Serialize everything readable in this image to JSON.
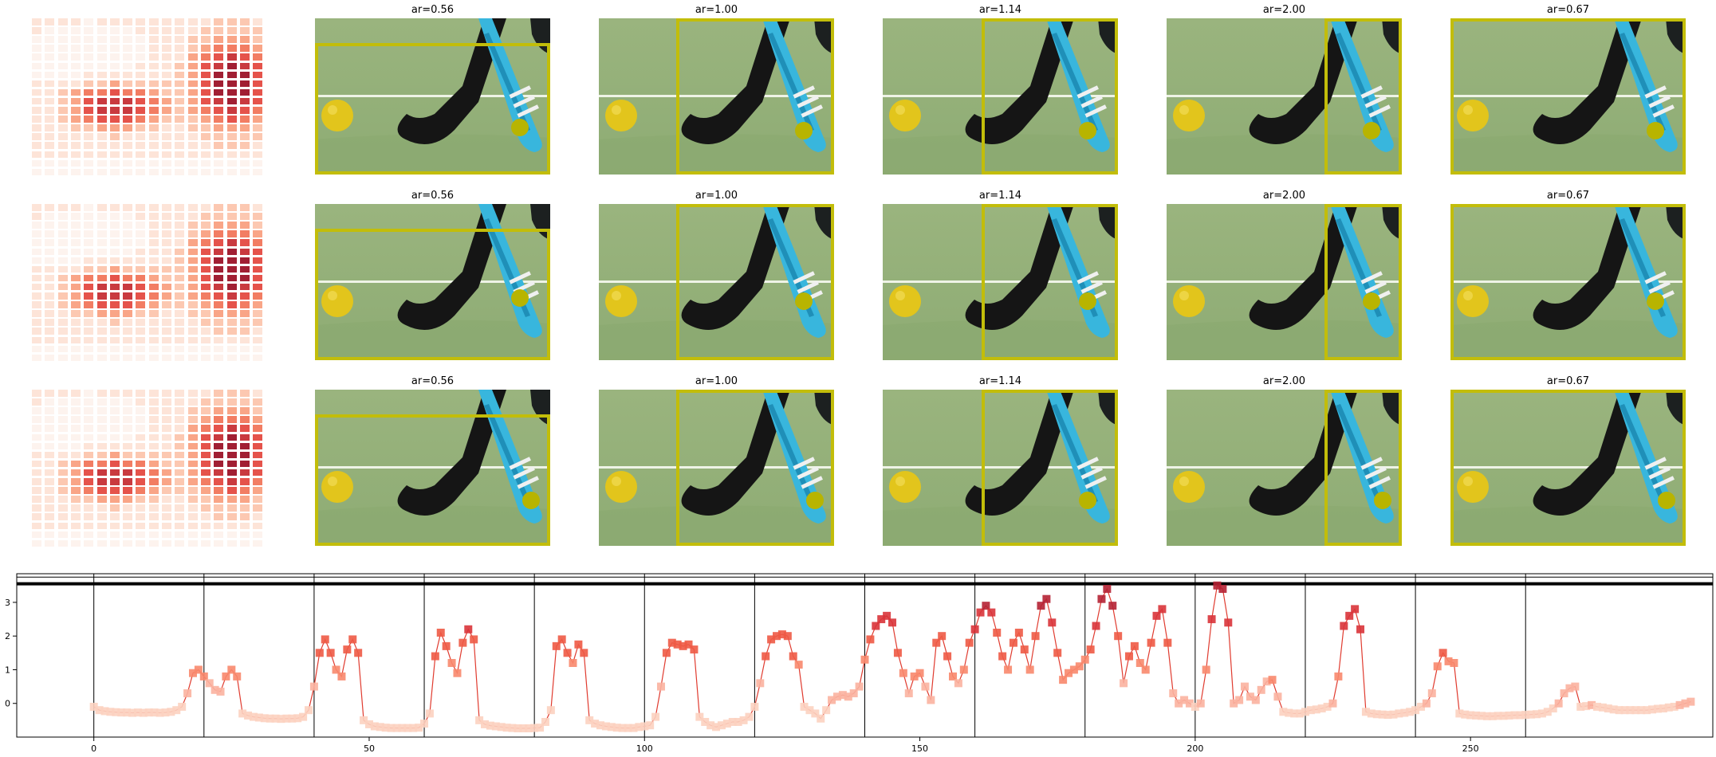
{
  "panels": {
    "rows": 3,
    "titles": [
      "ar=0.56",
      "ar=1.00",
      "ar=1.14",
      "ar=2.00",
      "ar=0.67"
    ],
    "box_color": "#c2bd0a",
    "dot_color": "#b8b400"
  },
  "chart_data": [
    {
      "type": "line",
      "title": "",
      "xlabel": "",
      "ylabel": "",
      "xlim": [
        -14,
        294
      ],
      "ylim": [
        -1.0,
        3.85
      ],
      "xticks": [
        0,
        50,
        100,
        150,
        200,
        250
      ],
      "yticks": [
        0,
        1,
        2,
        3
      ],
      "vlines": [
        0,
        20,
        40,
        60,
        80,
        100,
        120,
        140,
        160,
        180,
        200,
        220,
        240,
        260
      ],
      "hlines": [
        3.55,
        3.75
      ],
      "line_color": "#e03b2f",
      "series": [
        {
          "values": [
            -0.1,
            -0.2,
            -0.23,
            -0.25,
            -0.26,
            -0.27,
            -0.27,
            -0.28,
            -0.27,
            -0.28,
            -0.27,
            -0.27,
            -0.28,
            -0.27,
            -0.25,
            -0.2,
            -0.1,
            0.3,
            0.9,
            1.0,
            0.8,
            0.6,
            0.4,
            0.35,
            0.8,
            1.0,
            0.8,
            -0.3,
            -0.36,
            -0.4,
            -0.42,
            -0.44,
            -0.45,
            -0.45,
            -0.46,
            -0.45,
            -0.45,
            -0.44,
            -0.4,
            -0.2,
            0.5,
            1.5,
            1.9,
            1.5,
            1.0,
            0.8,
            1.6,
            1.9,
            1.5,
            -0.5,
            -0.62,
            -0.68,
            -0.7,
            -0.72,
            -0.73,
            -0.73,
            -0.73,
            -0.73,
            -0.73,
            -0.72,
            -0.6,
            -0.3,
            1.4,
            2.1,
            1.7,
            1.2,
            0.9,
            1.8,
            2.2,
            1.9,
            -0.5,
            -0.62,
            -0.66,
            -0.68,
            -0.7,
            -0.72,
            -0.73,
            -0.74,
            -0.74,
            -0.74,
            -0.73,
            -0.72,
            -0.55,
            -0.2,
            1.7,
            1.9,
            1.5,
            1.2,
            1.75,
            1.5,
            -0.5,
            -0.6,
            -0.65,
            -0.68,
            -0.7,
            -0.72,
            -0.73,
            -0.73,
            -0.73,
            -0.7,
            -0.68,
            -0.65,
            -0.4,
            0.5,
            1.5,
            1.8,
            1.75,
            1.7,
            1.75,
            1.6,
            -0.4,
            -0.55,
            -0.65,
            -0.7,
            -0.65,
            -0.6,
            -0.55,
            -0.55,
            -0.5,
            -0.4,
            -0.1,
            0.6,
            1.4,
            1.9,
            2.0,
            2.05,
            2.0,
            1.4,
            1.15,
            -0.1,
            -0.2,
            -0.3,
            -0.45,
            -0.2,
            0.1,
            0.2,
            0.25,
            0.2,
            0.3,
            0.5,
            1.3,
            1.9,
            2.3,
            2.5,
            2.6,
            2.4,
            1.5,
            0.9,
            0.3,
            0.8,
            0.9,
            0.5,
            0.1,
            1.8,
            2.0,
            1.4,
            0.8,
            0.6,
            1.0,
            1.8,
            2.2,
            2.7,
            2.9,
            2.7,
            2.1,
            1.4,
            1.0,
            1.8,
            2.1,
            1.6,
            1.0,
            2.0,
            2.9,
            3.1,
            2.4,
            1.5,
            0.7,
            0.9,
            1.0,
            1.1,
            1.3,
            1.6,
            2.3,
            3.1,
            3.4,
            2.9,
            2.0,
            0.6,
            1.4,
            1.7,
            1.2,
            1.0,
            1.8,
            2.6,
            2.8,
            1.8,
            0.3,
            0.0,
            0.1,
            0.0,
            -0.1,
            0.0,
            1.0,
            2.5,
            3.5,
            3.4,
            2.4,
            0.0,
            0.1,
            0.5,
            0.2,
            0.1,
            0.4,
            0.65,
            0.7,
            0.2,
            -0.25,
            -0.28,
            -0.3,
            -0.3,
            -0.25,
            -0.2,
            -0.18,
            -0.15,
            -0.1,
            0.0,
            0.8,
            2.3,
            2.6,
            2.8,
            2.2,
            -0.25,
            -0.3,
            -0.32,
            -0.33,
            -0.34,
            -0.33,
            -0.3,
            -0.28,
            -0.25,
            -0.2,
            -0.1,
            0.0,
            0.3,
            1.1,
            1.5,
            1.25,
            1.2,
            -0.3,
            -0.33,
            -0.35,
            -0.36,
            -0.37,
            -0.38,
            -0.38,
            -0.37,
            -0.37,
            -0.36,
            -0.35,
            -0.35,
            -0.34,
            -0.33,
            -0.32,
            -0.3,
            -0.25,
            -0.15,
            0.0,
            0.3,
            0.45,
            0.5,
            -0.1,
            -0.08,
            -0.05,
            -0.1,
            -0.12,
            -0.15,
            -0.18,
            -0.2,
            -0.2,
            -0.2,
            -0.2,
            -0.2,
            -0.2,
            -0.18,
            -0.16,
            -0.15,
            -0.12,
            -0.1,
            -0.05,
            0.0,
            0.05
          ]
        }
      ]
    }
  ]
}
